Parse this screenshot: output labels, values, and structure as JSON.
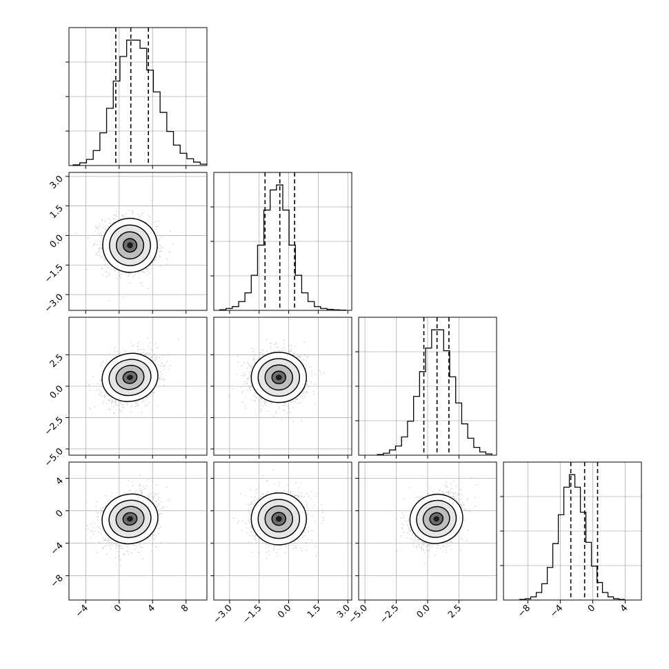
{
  "chart_data": {
    "type": "corner",
    "variables": 4,
    "title": "",
    "axes": [
      {
        "index": 0,
        "range": [
          -6,
          10.5
        ],
        "ticks": [
          -4,
          0,
          4,
          8
        ],
        "tick_labels": [
          "−4",
          "0",
          "4",
          "8"
        ],
        "mean": 1.3,
        "sd": 1.6,
        "quantiles": [
          -0.4,
          1.4,
          3.5
        ]
      },
      {
        "index": 1,
        "range": [
          -3.8,
          3.2
        ],
        "ticks": [
          -3.0,
          -1.5,
          0.0,
          1.5,
          3.0
        ],
        "tick_labels": [
          "−3.0",
          "−1.5",
          "0.0",
          "1.5",
          "3.0"
        ],
        "mean": -0.5,
        "sd": 0.7,
        "quantiles": [
          -1.2,
          -0.45,
          0.3
        ]
      },
      {
        "index": 2,
        "range": [
          -5.5,
          5.5
        ],
        "ticks": [
          -5.0,
          -2.5,
          0.0,
          2.5
        ],
        "tick_labels": [
          "−5.0",
          "−2.5",
          "0.0",
          "2.5"
        ],
        "mean": 0.7,
        "sd": 1.0,
        "quantiles": [
          -0.3,
          0.75,
          1.7
        ]
      },
      {
        "index": 3,
        "range": [
          -11,
          6
        ],
        "ticks": [
          -8,
          -4,
          0,
          4
        ],
        "tick_labels": [
          "−8",
          "−4",
          "0",
          "4"
        ],
        "mean": -1.0,
        "sd": 1.6,
        "quantiles": [
          -2.7,
          -1.0,
          0.6
        ]
      }
    ],
    "histograms": [
      {
        "variable": 0,
        "bin_start": -5.5,
        "bin_width": 0.8,
        "counts": [
          5,
          20,
          45,
          110,
          240,
          420,
          620,
          800,
          920,
          920,
          860,
          700,
          540,
          390,
          250,
          150,
          90,
          50,
          25,
          10
        ]
      },
      {
        "variable": 1,
        "bin_start": -3.5,
        "bin_width": 0.32,
        "counts": [
          5,
          15,
          30,
          70,
          140,
          280,
          520,
          800,
          960,
          1000,
          800,
          520,
          280,
          140,
          70,
          30,
          15,
          8,
          4,
          2
        ]
      },
      {
        "variable": 2,
        "bin_start": -4.0,
        "bin_width": 0.48,
        "counts": [
          5,
          15,
          40,
          70,
          140,
          260,
          450,
          640,
          820,
          960,
          960,
          800,
          600,
          400,
          240,
          130,
          60,
          25,
          10
        ]
      },
      {
        "variable": 3,
        "bin_start": -9.0,
        "bin_width": 0.68,
        "counts": [
          5,
          10,
          25,
          60,
          130,
          260,
          450,
          680,
          900,
          1000,
          900,
          700,
          460,
          270,
          140,
          60,
          25,
          10,
          5
        ]
      }
    ],
    "pairs": [
      {
        "x": 0,
        "y": 1,
        "rho": -0.1
      },
      {
        "x": 0,
        "y": 2,
        "rho": 0.25
      },
      {
        "x": 1,
        "y": 2,
        "rho": 0.0
      },
      {
        "x": 0,
        "y": 3,
        "rho": 0.25
      },
      {
        "x": 1,
        "y": 3,
        "rho": 0.0
      },
      {
        "x": 2,
        "y": 3,
        "rho": 0.3
      }
    ],
    "contour_levels_sigma": [
      0.5,
      1.0,
      1.5,
      2.0
    ],
    "grid": true,
    "quantile_line_style": "dashed"
  }
}
